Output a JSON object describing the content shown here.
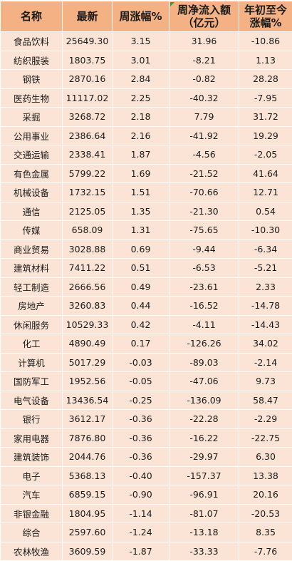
{
  "headers": [
    {
      "lines": [
        "名称"
      ]
    },
    {
      "lines": [
        "最新"
      ]
    },
    {
      "lines": [
        "周涨幅%"
      ]
    },
    {
      "lines": [
        "周净流入额",
        "（亿元）"
      ]
    },
    {
      "lines": [
        "年初至今",
        "涨幅%"
      ]
    }
  ],
  "rows": [
    {
      "name": "食品饮料",
      "latest": "25649.30",
      "weekly_change": "3.15",
      "net_inflow": "31.96",
      "ytd": "-10.86"
    },
    {
      "name": "纺织服装",
      "latest": "1803.75",
      "weekly_change": "3.01",
      "net_inflow": "-8.21",
      "ytd": "1.13"
    },
    {
      "name": "钢铁",
      "latest": "2870.16",
      "weekly_change": "2.84",
      "net_inflow": "-0.82",
      "ytd": "28.28"
    },
    {
      "name": "医药生物",
      "latest": "11117.02",
      "weekly_change": "2.25",
      "net_inflow": "-40.32",
      "ytd": "-7.95"
    },
    {
      "name": "采掘",
      "latest": "3268.72",
      "weekly_change": "2.18",
      "net_inflow": "7.79",
      "ytd": "31.72"
    },
    {
      "name": "公用事业",
      "latest": "2386.64",
      "weekly_change": "2.16",
      "net_inflow": "-41.92",
      "ytd": "19.29"
    },
    {
      "name": "交通运输",
      "latest": "2338.41",
      "weekly_change": "1.87",
      "net_inflow": "-4.56",
      "ytd": "-2.05"
    },
    {
      "name": "有色金属",
      "latest": "5799.22",
      "weekly_change": "1.69",
      "net_inflow": "-21.52",
      "ytd": "41.64"
    },
    {
      "name": "机械设备",
      "latest": "1732.15",
      "weekly_change": "1.51",
      "net_inflow": "-70.66",
      "ytd": "12.71"
    },
    {
      "name": "通信",
      "latest": "2125.05",
      "weekly_change": "1.35",
      "net_inflow": "-21.30",
      "ytd": "0.54"
    },
    {
      "name": "传媒",
      "latest": "658.09",
      "weekly_change": "1.31",
      "net_inflow": "-75.65",
      "ytd": "-10.30"
    },
    {
      "name": "商业贸易",
      "latest": "3028.88",
      "weekly_change": "0.69",
      "net_inflow": "-9.44",
      "ytd": "-6.34"
    },
    {
      "name": "建筑材料",
      "latest": "7411.22",
      "weekly_change": "0.51",
      "net_inflow": "-6.53",
      "ytd": "-5.21"
    },
    {
      "name": "轻工制造",
      "latest": "2666.56",
      "weekly_change": "0.49",
      "net_inflow": "-23.61",
      "ytd": "2.33"
    },
    {
      "name": "房地产",
      "latest": "3260.83",
      "weekly_change": "0.44",
      "net_inflow": "-16.52",
      "ytd": "-14.78"
    },
    {
      "name": "休闲服务",
      "latest": "10529.33",
      "weekly_change": "0.42",
      "net_inflow": "-4.11",
      "ytd": "-14.43"
    },
    {
      "name": "化工",
      "latest": "4890.49",
      "weekly_change": "0.17",
      "net_inflow": "-126.26",
      "ytd": "34.02"
    },
    {
      "name": "计算机",
      "latest": "5017.29",
      "weekly_change": "-0.03",
      "net_inflow": "-89.03",
      "ytd": "-2.14"
    },
    {
      "name": "国防军工",
      "latest": "1952.56",
      "weekly_change": "-0.05",
      "net_inflow": "-47.06",
      "ytd": "9.73"
    },
    {
      "name": "电气设备",
      "latest": "13436.54",
      "weekly_change": "-0.25",
      "net_inflow": "-136.09",
      "ytd": "58.47"
    },
    {
      "name": "银行",
      "latest": "3612.17",
      "weekly_change": "-0.36",
      "net_inflow": "-22.28",
      "ytd": "-2.29"
    },
    {
      "name": "家用电器",
      "latest": "7876.80",
      "weekly_change": "-0.36",
      "net_inflow": "-16.22",
      "ytd": "-22.75"
    },
    {
      "name": "建筑装饰",
      "latest": "2044.76",
      "weekly_change": "-0.36",
      "net_inflow": "-29.97",
      "ytd": "6.30"
    },
    {
      "name": "电子",
      "latest": "5368.13",
      "weekly_change": "-0.40",
      "net_inflow": "-157.37",
      "ytd": "13.38"
    },
    {
      "name": "汽车",
      "latest": "6859.15",
      "weekly_change": "-0.90",
      "net_inflow": "-96.91",
      "ytd": "20.16"
    },
    {
      "name": "非银金融",
      "latest": "1804.95",
      "weekly_change": "-1.14",
      "net_inflow": "-81.07",
      "ytd": "-20.53"
    },
    {
      "name": "综合",
      "latest": "2597.60",
      "weekly_change": "-1.24",
      "net_inflow": "-13.18",
      "ytd": "8.35"
    },
    {
      "name": "农林牧渔",
      "latest": "3609.59",
      "weekly_change": "-1.87",
      "net_inflow": "-33.33",
      "ytd": "-7.76"
    }
  ],
  "colors": {
    "header_bg": "#f4b183",
    "row_bg": "#fbe4d5",
    "grid": "#ffffff",
    "corner_marker": "#2e9e3e"
  }
}
